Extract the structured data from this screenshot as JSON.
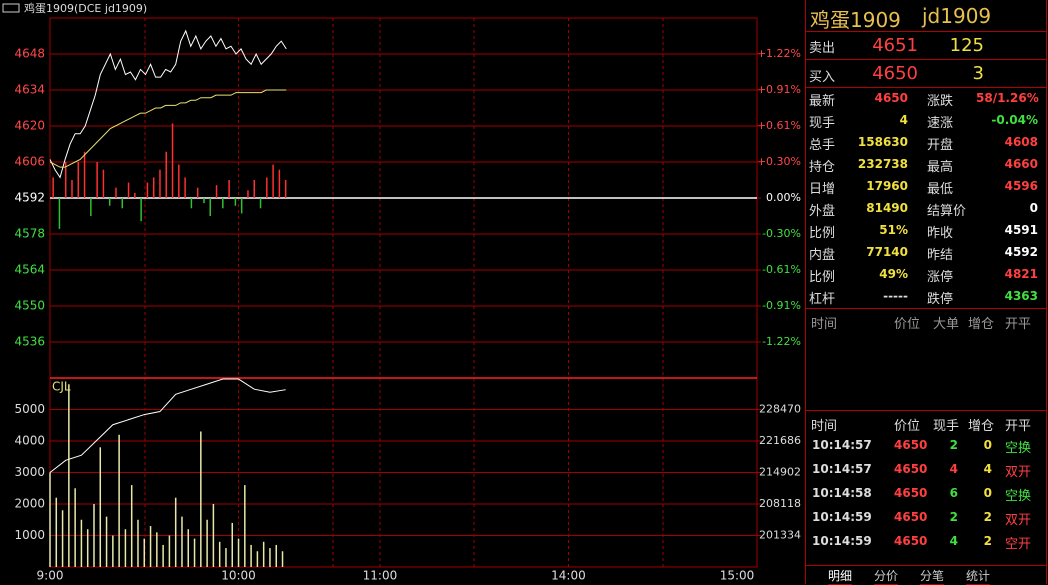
{
  "title": "鸡蛋1909(DCE jd1909)",
  "chart_data": [
    {
      "type": "line",
      "xlim": [
        0,
        225
      ],
      "ylim": [
        4522,
        4662
      ],
      "y2lim": [
        4522,
        4662
      ],
      "yticks": [
        4648,
        4634,
        4620,
        4606,
        4592,
        4578,
        4564,
        4550,
        4536
      ],
      "y2ticks": [
        {
          "value": 4648,
          "label": "+1.22%"
        },
        {
          "value": 4634,
          "label": "+0.91%"
        },
        {
          "value": 4620,
          "label": "+0.61%"
        },
        {
          "value": 4606,
          "label": "+0.30%"
        },
        {
          "value": 4592,
          "label": "0.00%"
        },
        {
          "value": 4578,
          "label": "-0.30%"
        },
        {
          "value": 4564,
          "label": "-0.61%"
        },
        {
          "value": 4550,
          "label": "-0.91%"
        },
        {
          "value": 4536,
          "label": "-1.22%"
        }
      ],
      "x": [
        0,
        1.6,
        3.2,
        4.8,
        6.4,
        8,
        9.6,
        11.2,
        12.8,
        14.4,
        16,
        17.6,
        19.2,
        20.8,
        22.4,
        24,
        25.6,
        27.2,
        28.8,
        30.4,
        32,
        33.6,
        35.2,
        36.8,
        38.4,
        40,
        41.6,
        43.2,
        44.8,
        46.4,
        48,
        49.6,
        51.2,
        52.8,
        54.4,
        56,
        57.6,
        59.2,
        60.8,
        62.4,
        64,
        65.6,
        67.2,
        68.8,
        70.4,
        72,
        73.6,
        75.2
      ],
      "series": [
        {
          "color": "#ffffff",
          "values": [
            4607,
            4603,
            4600,
            4607,
            4613,
            4617,
            4617,
            4620,
            4626,
            4632,
            4640,
            4644,
            4648,
            4642,
            4646,
            4640,
            4641,
            4638,
            4642,
            4640,
            4644,
            4639,
            4639,
            4642,
            4641,
            4644,
            4653,
            4657,
            4651,
            4655,
            4650,
            4653,
            4655,
            4651,
            4654,
            4650,
            4651,
            4648,
            4650,
            4646,
            4644,
            4648,
            4644,
            4646,
            4648,
            4651,
            4653,
            4650
          ]
        },
        {
          "color": "#e8e070",
          "values": [
            4606,
            4605,
            4604,
            4604,
            4605,
            4606,
            4607,
            4609,
            4611,
            4613,
            4615,
            4617,
            4619,
            4620,
            4621,
            4622,
            4623,
            4624,
            4625,
            4625,
            4626,
            4627,
            4627,
            4628,
            4628,
            4628,
            4629,
            4629,
            4630,
            4630,
            4631,
            4631,
            4631,
            4632,
            4632,
            4632,
            4632,
            4633,
            4633,
            4633,
            4633,
            4633,
            4633,
            4634,
            4634,
            4634,
            4634,
            4634
          ]
        }
      ],
      "bars": {
        "x": [
          1,
          3,
          5,
          7,
          9,
          11,
          13,
          15,
          17,
          19,
          21,
          23,
          25,
          27,
          29,
          31,
          33,
          35,
          37,
          39,
          41,
          43,
          45,
          47,
          49,
          51,
          53,
          55,
          57,
          59,
          61,
          63,
          65,
          67,
          69,
          71,
          73,
          75
        ],
        "values": [
          4600,
          4580,
          4606,
          4599,
          4606,
          4610,
          4585,
          4606,
          4603,
          4589,
          4596,
          4588,
          4598,
          4594,
          4583,
          4598,
          4600,
          4603,
          4610,
          4621,
          4605,
          4600,
          4588,
          4596,
          4590,
          4585,
          4597,
          4588,
          4599,
          4589,
          4586,
          4595,
          4599,
          4588,
          4600,
          4605,
          4603,
          4599
        ]
      }
    },
    {
      "type": "bar",
      "label": "CJL",
      "xlim": [
        0,
        225
      ],
      "ylim": [
        0,
        6000
      ],
      "y2lim": [
        194550,
        235254
      ],
      "xticks": [
        {
          "value": 0,
          "label": "9:00"
        },
        {
          "value": 60,
          "label": "10:00"
        },
        {
          "value": 105,
          "label": "11:00"
        },
        {
          "value": 165,
          "label": "14:00"
        },
        {
          "value": 225,
          "label": "15:00"
        }
      ],
      "yticks": [
        1000,
        2000,
        3000,
        4000,
        5000
      ],
      "y2ticks": [
        201334,
        208118,
        214902,
        221686,
        228470
      ],
      "x": [
        0,
        2,
        4,
        6,
        8,
        10,
        12,
        14,
        16,
        18,
        20,
        22,
        24,
        26,
        28,
        30,
        32,
        34,
        36,
        38,
        40,
        42,
        44,
        46,
        48,
        50,
        52,
        54,
        56,
        58,
        60,
        62,
        64,
        66,
        68,
        70,
        72,
        74
      ],
      "values": [
        3000,
        2200,
        1800,
        5800,
        2500,
        1500,
        1200,
        2000,
        3800,
        1600,
        1000,
        4200,
        1200,
        2600,
        1500,
        900,
        1300,
        1100,
        700,
        1000,
        2200,
        1600,
        1200,
        900,
        4300,
        1500,
        2000,
        800,
        600,
        1400,
        900,
        2600,
        700,
        500,
        800,
        600,
        700,
        500
      ],
      "color": "#e8e8a8",
      "series": [
        {
          "axis": "y2",
          "color": "#ffffff",
          "x": [
            0,
            5,
            10,
            15,
            20,
            25,
            30,
            35,
            40,
            45,
            50,
            55,
            60,
            65,
            70,
            75
          ],
          "values": [
            214904,
            217530,
            218624,
            221906,
            225188,
            226282,
            227376,
            228032,
            231752,
            232846,
            233940,
            235034,
            235034,
            232846,
            232190,
            232738
          ]
        }
      ]
    }
  ],
  "quote": {
    "name": "鸡蛋1909",
    "code": "jd1909",
    "ask": {
      "label": "卖出",
      "price": 4651,
      "volume": 125
    },
    "bid": {
      "label": "买入",
      "price": 4650,
      "volume": 3
    },
    "stats": [
      [
        "最新",
        4650,
        "涨跌",
        "58/1.26%"
      ],
      [
        "现手",
        4,
        "速涨",
        "-0.04%"
      ],
      [
        "总手",
        158630,
        "开盘",
        4608
      ],
      [
        "持仓",
        232738,
        "最高",
        4660
      ],
      [
        "日增",
        17960,
        "最低",
        4596
      ],
      [
        "外盘",
        81490,
        "结算价",
        0
      ],
      [
        "比例",
        "51%",
        "昨收",
        4591
      ],
      [
        "内盘",
        77140,
        "昨结",
        4592
      ],
      [
        "比例",
        "49%",
        "涨停",
        4821
      ],
      [
        "杠杆",
        "-----",
        "跌停",
        4363
      ]
    ]
  },
  "big_orders": {
    "header": [
      "时间",
      "价位",
      "大单",
      "增仓",
      "开平"
    ]
  },
  "trades": {
    "header": [
      "时间",
      "价位",
      "现手",
      "增仓",
      "开平"
    ],
    "rows": [
      [
        "10:14:57",
        4650,
        2,
        0,
        "空换"
      ],
      [
        "10:14:57",
        4650,
        4,
        4,
        "双开"
      ],
      [
        "10:14:58",
        4650,
        6,
        0,
        "空换"
      ],
      [
        "10:14:59",
        4650,
        2,
        2,
        "双开"
      ],
      [
        "10:14:59",
        4650,
        4,
        2,
        "空开"
      ]
    ]
  },
  "tabs": [
    "明细",
    "分价",
    "分笔",
    "统计"
  ]
}
